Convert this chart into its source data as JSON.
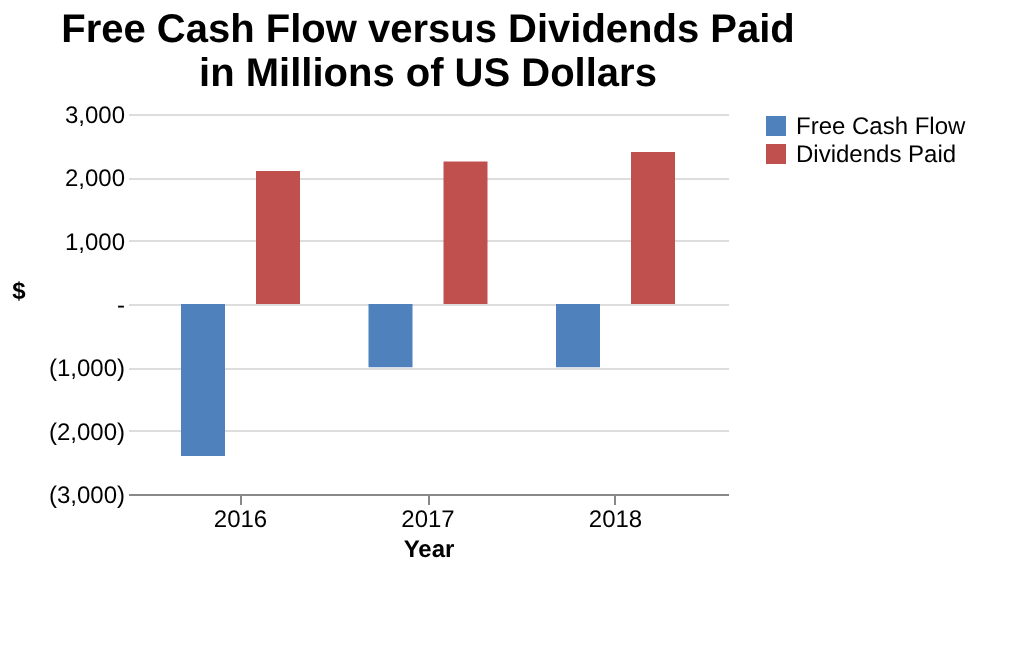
{
  "chart_data": {
    "type": "bar",
    "title": "Free Cash Flow versus Dividends Paid\nin Millions of US Dollars",
    "xlabel": "Year",
    "ylabel": "$",
    "categories": [
      "2016",
      "2017",
      "2018"
    ],
    "series": [
      {
        "name": "Free Cash Flow",
        "color": "#4f81bd",
        "values": [
          -2400,
          -1000,
          -1000
        ]
      },
      {
        "name": "Dividends Paid",
        "color": "#c0504d",
        "values": [
          2100,
          2250,
          2400
        ]
      }
    ],
    "ylim": [
      -3000,
      3000
    ],
    "yticks": [
      {
        "value": -3000,
        "label": "(3,000)"
      },
      {
        "value": -2000,
        "label": "(2,000)"
      },
      {
        "value": -1000,
        "label": "(1,000)"
      },
      {
        "value": 0,
        "label": "-"
      },
      {
        "value": 1000,
        "label": "1,000"
      },
      {
        "value": 2000,
        "label": "2,000"
      },
      {
        "value": 3000,
        "label": "3,000"
      }
    ],
    "grid": "y",
    "legend": "right"
  }
}
